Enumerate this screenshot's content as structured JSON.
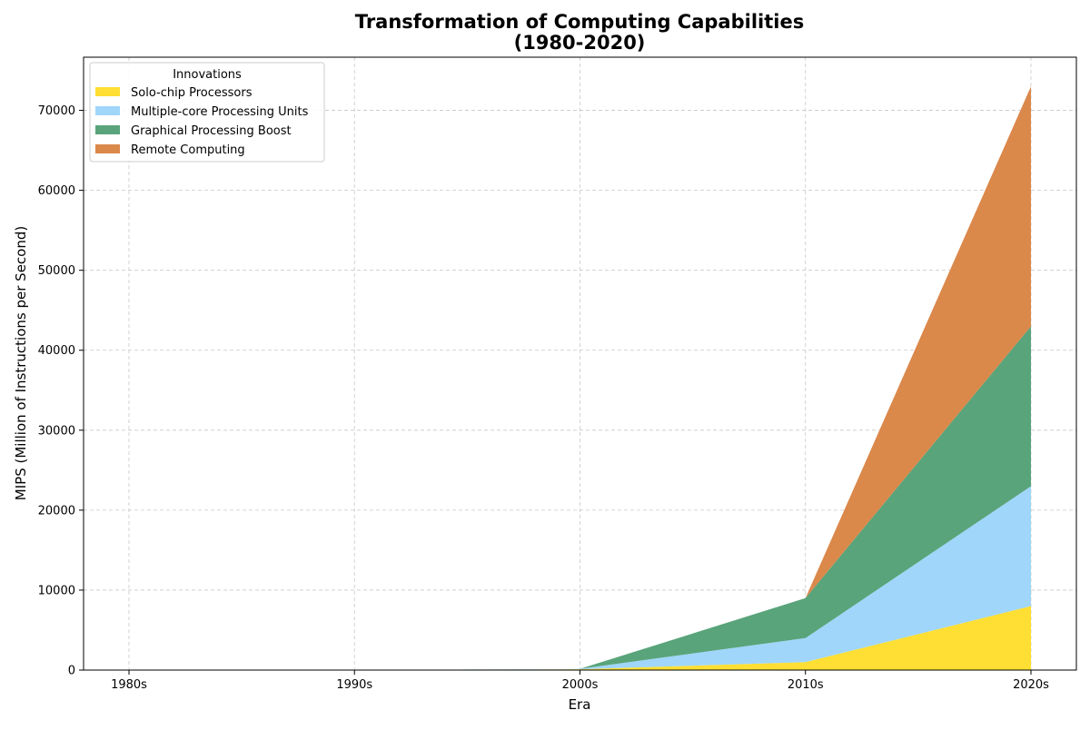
{
  "chart_data": {
    "type": "area",
    "stacked": true,
    "title": "Transformation of Computing Capabilities",
    "subtitle": "(1980-2020)",
    "xlabel": "Era",
    "ylabel": "MIPS (Million of Instructions per Second)",
    "categories": [
      "1980s",
      "1990s",
      "2000s",
      "2010s",
      "2020s"
    ],
    "ylim": [
      0,
      76650
    ],
    "yticks": [
      0,
      10000,
      20000,
      30000,
      40000,
      50000,
      60000,
      70000
    ],
    "ytick_labels": [
      "0",
      "10000",
      "20000",
      "30000",
      "40000",
      "50000",
      "60000",
      "70000"
    ],
    "grid": true,
    "legend": {
      "title": "Innovations",
      "placement": "top-left"
    },
    "series": [
      {
        "name": "Solo-chip Processors",
        "color": "#FFDF33",
        "values": [
          1,
          10,
          100,
          1000,
          8000
        ]
      },
      {
        "name": "Multiple-core Processing Units",
        "color": "#A0D6FA",
        "values": [
          0,
          0,
          50,
          3000,
          15000
        ]
      },
      {
        "name": "Graphical Processing Boost",
        "color": "#59A47A",
        "values": [
          0,
          0,
          0,
          5000,
          20000
        ]
      },
      {
        "name": "Remote Computing",
        "color": "#DB884B",
        "values": [
          0,
          0,
          0,
          0,
          30000
        ]
      }
    ]
  }
}
